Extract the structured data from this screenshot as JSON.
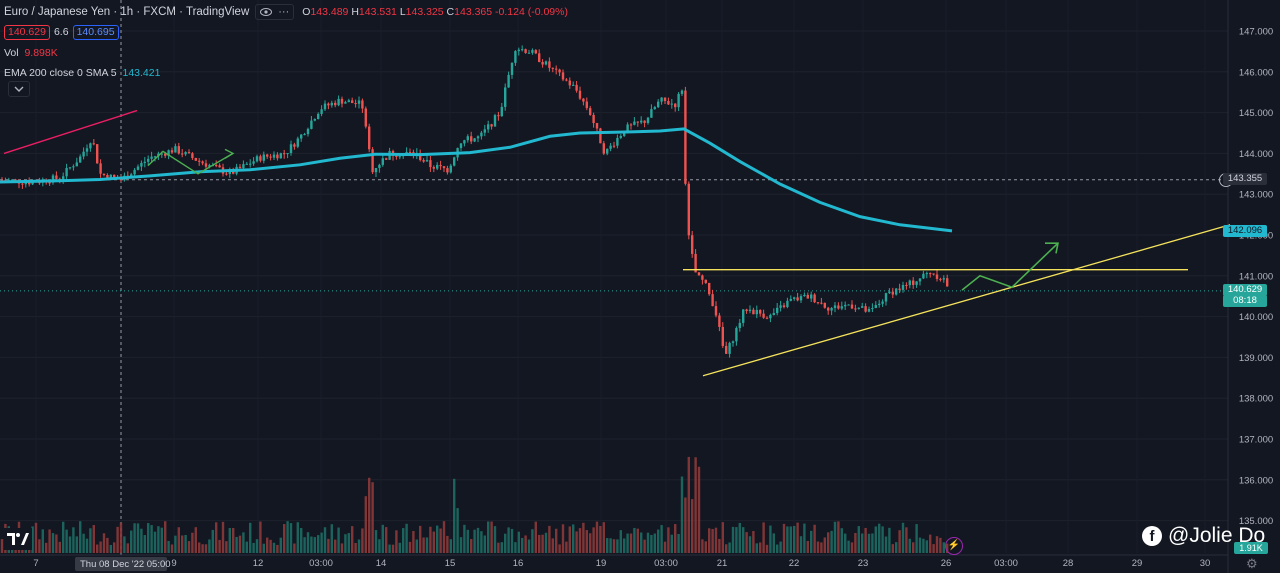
{
  "header": {
    "symbol": "Euro / Japanese Yen · 1h · FXCM · TradingView",
    "ohlc": {
      "o_label": "O",
      "o": "143.489",
      "h_label": "H",
      "h": "143.531",
      "l_label": "L",
      "l": "143.325",
      "c_label": "C",
      "c": "143.365",
      "change": "-0.124 (-0.09%)"
    },
    "sell_price": "140.629",
    "spread": "6.6",
    "buy_price": "140.695",
    "vol_label": "Vol",
    "vol_value": "9.898K",
    "ema_label": "EMA 200 close 0 SMA 5",
    "ema_value": "143.421"
  },
  "price_axis": {
    "ticks": [
      "147.000",
      "146.000",
      "145.000",
      "144.000",
      "143.000",
      "142.000",
      "141.000",
      "140.000",
      "139.000",
      "138.000",
      "137.000",
      "136.000",
      "135.000"
    ],
    "crosshair_price": "143.355",
    "ema_tag": "142.096",
    "last_price": "140.629",
    "countdown": "08:18",
    "volume_tag": "1.91K"
  },
  "time_axis": {
    "labels": [
      "7",
      "9",
      "12",
      "03:00",
      "14",
      "15",
      "16",
      "19",
      "03:00",
      "21",
      "22",
      "23",
      "26",
      "03:00",
      "28",
      "29",
      "30"
    ],
    "crosshair_label": "Thu 08 Dec '22",
    "crosshair_time": "05:00"
  },
  "watermark": {
    "text": "@Jolie Do"
  },
  "colors": {
    "bg": "#131722",
    "up": "#26a69a",
    "down": "#ef5350",
    "ema": "#22b8cf",
    "trend": "#f5e25c",
    "arrow": "#4caf50",
    "pink": "#e91e63"
  },
  "icons": {
    "tv_logo": "tradingview-logo-icon",
    "eye": "eye-icon",
    "settings": "gear-icon",
    "bolt": "lightning-icon",
    "facebook": "facebook-icon"
  }
}
